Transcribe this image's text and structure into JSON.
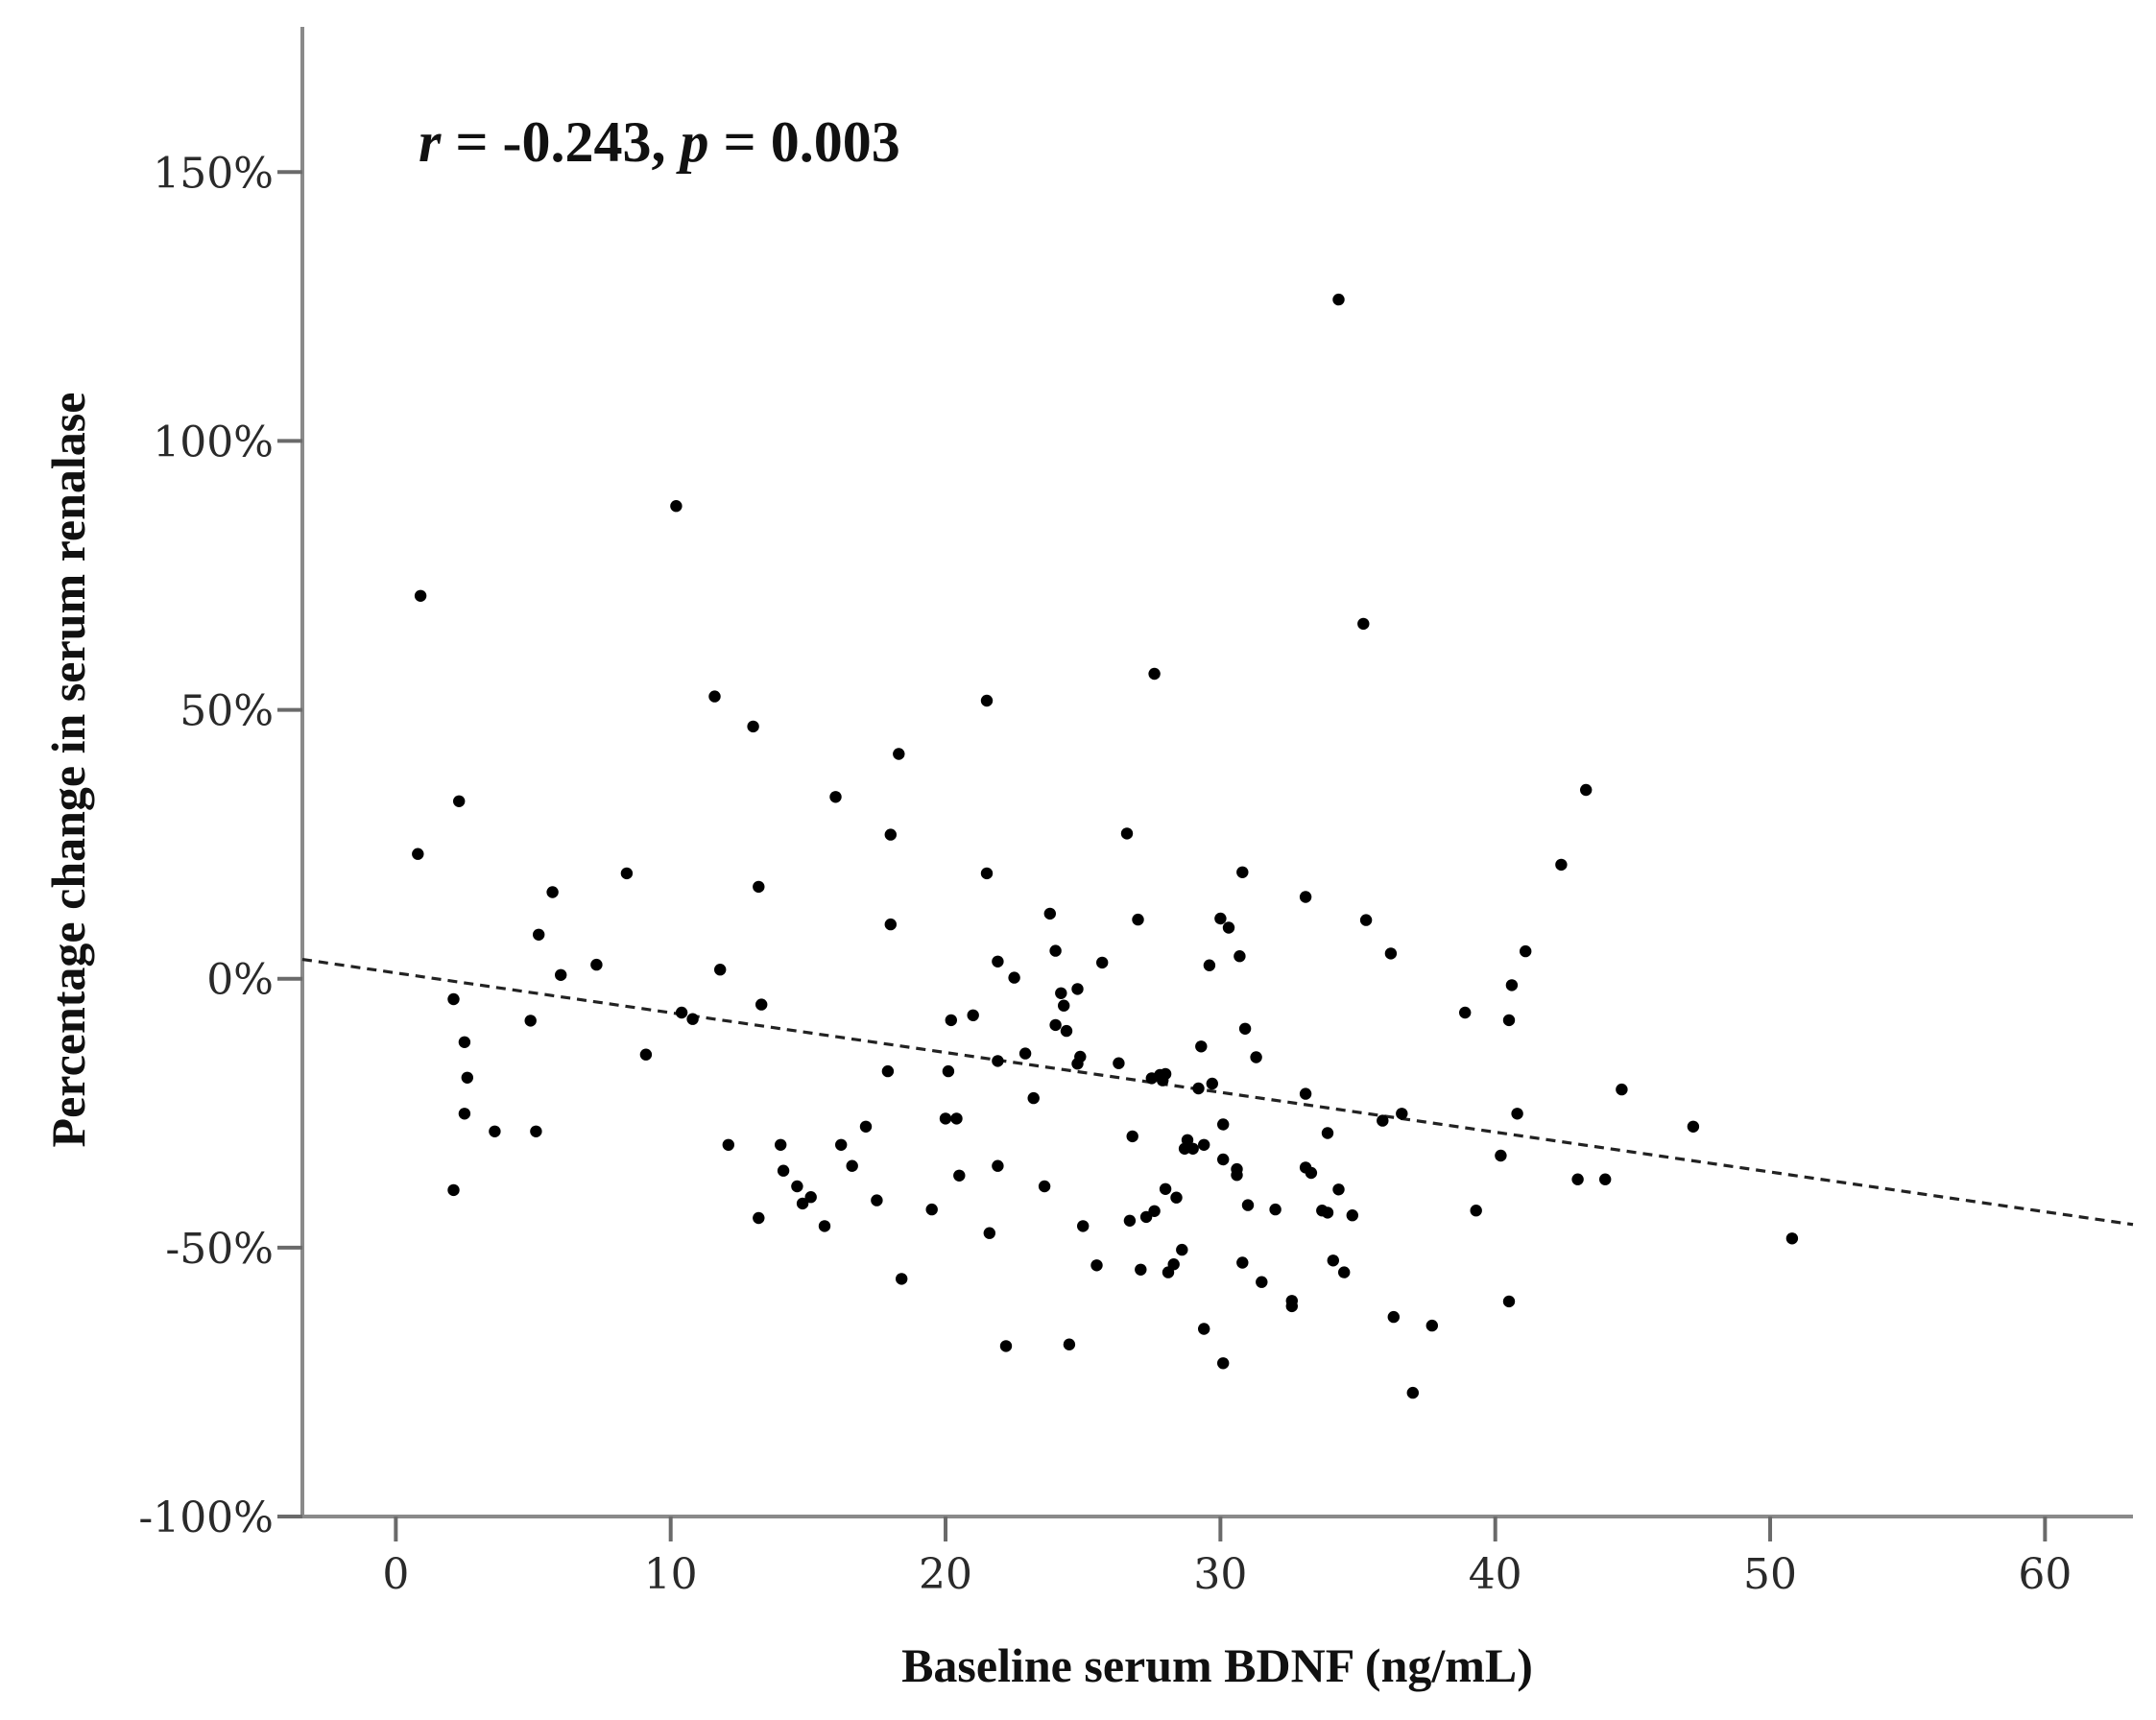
{
  "chart_data": {
    "type": "scatter",
    "xlabel": "Baseline serum BDNF (ng/mL)",
    "ylabel": "Percentage change in serum renalase",
    "annotation": {
      "r_symbol": "r",
      "r_text": " = -0.243, ",
      "p_symbol": "p",
      "p_text": " = 0.003"
    },
    "xlim": [
      -3.4,
      63.2
    ],
    "ylim": [
      -100,
      177
    ],
    "x_ticks": [
      0,
      10,
      20,
      30,
      40,
      50,
      60
    ],
    "x_tick_labels": [
      "0",
      "10",
      "20",
      "30",
      "40",
      "50",
      "60"
    ],
    "y_ticks": [
      150,
      100,
      50,
      0,
      -50,
      -100
    ],
    "y_tick_labels": [
      "150%",
      "100%",
      "50%",
      "0%",
      "-50%",
      "-100%"
    ],
    "grid": false,
    "fit_line": {
      "style": "dashed",
      "x": [
        -3.4,
        63.2
      ],
      "y": [
        3.6,
        -45.7
      ]
    },
    "colors": {
      "points": "#000000",
      "axes": "#8a8a8a",
      "text": "#111111"
    },
    "points": [
      [
        0.9,
        71.2
      ],
      [
        0.8,
        23.2
      ],
      [
        2.3,
        33.0
      ],
      [
        2.1,
        -3.8
      ],
      [
        2.5,
        -11.8
      ],
      [
        2.6,
        -18.4
      ],
      [
        2.5,
        -25.1
      ],
      [
        2.1,
        -39.3
      ],
      [
        3.6,
        -28.4
      ],
      [
        4.9,
        -7.8
      ],
      [
        5.2,
        8.2
      ],
      [
        5.7,
        16.1
      ],
      [
        6.0,
        0.7
      ],
      [
        5.1,
        -28.4
      ],
      [
        7.3,
        2.6
      ],
      [
        8.4,
        19.6
      ],
      [
        9.1,
        -14.1
      ],
      [
        10.2,
        87.9
      ],
      [
        10.4,
        -6.3
      ],
      [
        10.8,
        -7.5
      ],
      [
        11.6,
        52.5
      ],
      [
        11.8,
        1.7
      ],
      [
        12.1,
        -30.9
      ],
      [
        13.0,
        46.9
      ],
      [
        13.2,
        17.1
      ],
      [
        13.3,
        -4.8
      ],
      [
        13.2,
        -44.5
      ],
      [
        14.0,
        -30.9
      ],
      [
        14.1,
        -35.7
      ],
      [
        14.6,
        -38.6
      ],
      [
        14.8,
        -41.8
      ],
      [
        15.1,
        -40.6
      ],
      [
        15.6,
        -46.0
      ],
      [
        16.0,
        33.8
      ],
      [
        16.2,
        -30.9
      ],
      [
        16.6,
        -34.8
      ],
      [
        17.1,
        -27.5
      ],
      [
        17.5,
        -41.2
      ],
      [
        17.9,
        -17.2
      ],
      [
        18.0,
        26.8
      ],
      [
        18.0,
        10.1
      ],
      [
        18.3,
        41.8
      ],
      [
        18.4,
        -55.8
      ],
      [
        19.5,
        -42.9
      ],
      [
        20.2,
        -7.7
      ],
      [
        20.1,
        -17.2
      ],
      [
        20.0,
        -26.0
      ],
      [
        20.4,
        -26.0
      ],
      [
        20.5,
        -36.6
      ],
      [
        21.0,
        -6.8
      ],
      [
        21.5,
        51.7
      ],
      [
        21.5,
        19.6
      ],
      [
        21.6,
        -47.3
      ],
      [
        21.9,
        -34.8
      ],
      [
        21.9,
        -15.3
      ],
      [
        21.9,
        3.2
      ],
      [
        22.2,
        -68.3
      ],
      [
        22.5,
        0.2
      ],
      [
        22.9,
        -13.9
      ],
      [
        23.2,
        -22.2
      ],
      [
        23.6,
        -38.6
      ],
      [
        23.8,
        12.1
      ],
      [
        24.0,
        -8.6
      ],
      [
        24.0,
        5.2
      ],
      [
        24.2,
        -2.7
      ],
      [
        24.3,
        -5.0
      ],
      [
        24.4,
        -9.7
      ],
      [
        24.5,
        -68.0
      ],
      [
        24.8,
        -1.9
      ],
      [
        24.8,
        -15.8
      ],
      [
        24.9,
        -14.5
      ],
      [
        25.0,
        -46.0
      ],
      [
        25.5,
        -53.3
      ],
      [
        25.7,
        3.0
      ],
      [
        26.3,
        -15.7
      ],
      [
        26.6,
        27.0
      ],
      [
        26.7,
        -45.0
      ],
      [
        26.8,
        -29.3
      ],
      [
        27.0,
        11.0
      ],
      [
        27.1,
        -54.1
      ],
      [
        27.3,
        -44.3
      ],
      [
        27.5,
        -18.5
      ],
      [
        27.6,
        56.7
      ],
      [
        27.6,
        -43.2
      ],
      [
        27.8,
        -17.9
      ],
      [
        27.9,
        -18.9
      ],
      [
        28.0,
        -17.7
      ],
      [
        28.0,
        -39.1
      ],
      [
        28.1,
        -54.6
      ],
      [
        28.3,
        -53.1
      ],
      [
        28.4,
        -40.7
      ],
      [
        28.6,
        -50.4
      ],
      [
        28.7,
        -31.6
      ],
      [
        28.8,
        -30.0
      ],
      [
        29.0,
        -31.6
      ],
      [
        29.2,
        -20.4
      ],
      [
        29.3,
        -12.6
      ],
      [
        29.4,
        -30.9
      ],
      [
        29.4,
        -65.1
      ],
      [
        29.6,
        2.5
      ],
      [
        29.7,
        -19.5
      ],
      [
        30.0,
        11.2
      ],
      [
        30.1,
        -27.1
      ],
      [
        30.1,
        -33.6
      ],
      [
        30.1,
        -71.5
      ],
      [
        30.3,
        9.5
      ],
      [
        30.6,
        -35.4
      ],
      [
        30.6,
        -36.5
      ],
      [
        30.7,
        4.2
      ],
      [
        30.8,
        19.8
      ],
      [
        30.8,
        -52.8
      ],
      [
        30.9,
        -9.3
      ],
      [
        31.0,
        -42.1
      ],
      [
        31.3,
        -14.6
      ],
      [
        31.5,
        -56.4
      ],
      [
        32.0,
        -42.9
      ],
      [
        32.6,
        -59.9
      ],
      [
        32.6,
        -60.9
      ],
      [
        33.1,
        -35.1
      ],
      [
        33.1,
        15.2
      ],
      [
        33.1,
        -21.4
      ],
      [
        33.3,
        -36.1
      ],
      [
        33.7,
        -43.1
      ],
      [
        33.9,
        -43.5
      ],
      [
        33.9,
        -28.7
      ],
      [
        34.1,
        -52.4
      ],
      [
        34.3,
        126.3
      ],
      [
        34.3,
        -39.2
      ],
      [
        34.5,
        -54.6
      ],
      [
        34.8,
        -44.0
      ],
      [
        35.2,
        66.0
      ],
      [
        35.3,
        10.9
      ],
      [
        35.9,
        -26.4
      ],
      [
        36.2,
        4.7
      ],
      [
        36.3,
        -62.9
      ],
      [
        36.6,
        -25.1
      ],
      [
        37.0,
        -77.0
      ],
      [
        37.7,
        -64.5
      ],
      [
        38.9,
        -6.3
      ],
      [
        39.3,
        -43.1
      ],
      [
        40.2,
        -32.9
      ],
      [
        40.5,
        -60.0
      ],
      [
        40.6,
        -1.2
      ],
      [
        40.5,
        -7.7
      ],
      [
        40.8,
        -25.1
      ],
      [
        41.1,
        5.1
      ],
      [
        42.4,
        21.2
      ],
      [
        43.0,
        -37.3
      ],
      [
        43.3,
        35.1
      ],
      [
        44.0,
        -37.3
      ],
      [
        44.6,
        -20.6
      ],
      [
        47.2,
        -27.5
      ],
      [
        50.8,
        -48.3
      ]
    ]
  }
}
